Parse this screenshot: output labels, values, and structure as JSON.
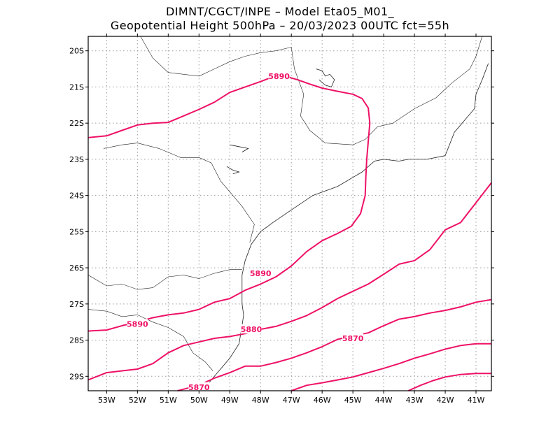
{
  "header": {
    "line1": "DIMNT/CGCT/INPE –  Model Eta05_M01_",
    "line2": "Geopotential Height 500hPa –  20/03/2023 00UTC fct=55h"
  },
  "colors": {
    "contour": "#ee1166",
    "grid": "#999999",
    "coast": "#222222",
    "frame": "#000000"
  },
  "map_data": {
    "type": "contour",
    "variable": "Geopotential Height 500hPa",
    "lon_range": [
      -53.6,
      -40.5
    ],
    "lat_range": [
      -29.4,
      -19.6
    ],
    "x_ticks": [
      {
        "value": -53,
        "label": "53W"
      },
      {
        "value": -52,
        "label": "52W"
      },
      {
        "value": -51,
        "label": "51W"
      },
      {
        "value": -50,
        "label": "50W"
      },
      {
        "value": -49,
        "label": "49W"
      },
      {
        "value": -48,
        "label": "48W"
      },
      {
        "value": -47,
        "label": "47W"
      },
      {
        "value": -46,
        "label": "46W"
      },
      {
        "value": -45,
        "label": "45W"
      },
      {
        "value": -44,
        "label": "44W"
      },
      {
        "value": -43,
        "label": "43W"
      },
      {
        "value": -42,
        "label": "42W"
      },
      {
        "value": -41,
        "label": "41W"
      }
    ],
    "y_ticks": [
      {
        "value": -20,
        "label": "20S"
      },
      {
        "value": -21,
        "label": "21S"
      },
      {
        "value": -22,
        "label": "22S"
      },
      {
        "value": -23,
        "label": "23S"
      },
      {
        "value": -24,
        "label": "24S"
      },
      {
        "value": -25,
        "label": "25S"
      },
      {
        "value": -26,
        "label": "26S"
      },
      {
        "value": -27,
        "label": "27S"
      },
      {
        "value": -28,
        "label": "28S"
      },
      {
        "value": -29,
        "label": "29S"
      }
    ],
    "contours": [
      {
        "id": "north-5890",
        "points": [
          [
            -53.6,
            -22.4
          ],
          [
            -53.0,
            -22.35
          ],
          [
            -52.5,
            -22.2
          ],
          [
            -52.0,
            -22.05
          ],
          [
            -51.5,
            -22.0
          ],
          [
            -51.0,
            -21.98
          ],
          [
            -50.5,
            -21.8
          ],
          [
            -50.0,
            -21.62
          ],
          [
            -49.5,
            -21.42
          ],
          [
            -49.0,
            -21.15
          ],
          [
            -48.5,
            -21.0
          ],
          [
            -48.0,
            -20.85
          ],
          [
            -47.6,
            -20.72
          ],
          [
            -47.2,
            -20.7
          ],
          [
            -46.8,
            -20.8
          ],
          [
            -46.4,
            -20.92
          ],
          [
            -46.0,
            -21.03
          ],
          [
            -45.5,
            -21.12
          ],
          [
            -45.0,
            -21.2
          ],
          [
            -44.7,
            -21.32
          ],
          [
            -44.5,
            -21.58
          ],
          [
            -44.45,
            -22.0
          ],
          [
            -44.5,
            -22.5
          ],
          [
            -44.55,
            -23.0
          ],
          [
            -44.58,
            -23.5
          ],
          [
            -44.6,
            -24.0
          ],
          [
            -44.75,
            -24.5
          ],
          [
            -45.05,
            -24.85
          ],
          [
            -45.5,
            -25.05
          ],
          [
            -46.0,
            -25.25
          ],
          [
            -46.5,
            -25.55
          ],
          [
            -47.0,
            -25.95
          ],
          [
            -47.5,
            -26.25
          ],
          [
            -48.0,
            -26.45
          ],
          [
            -48.5,
            -26.62
          ],
          [
            -49.0,
            -26.85
          ],
          [
            -49.5,
            -26.95
          ],
          [
            -50.0,
            -27.15
          ],
          [
            -50.5,
            -27.25
          ],
          [
            -51.0,
            -27.3
          ],
          [
            -51.5,
            -27.38
          ],
          [
            -52.0,
            -27.5
          ],
          [
            -52.5,
            -27.6
          ],
          [
            -53.0,
            -27.72
          ],
          [
            -53.6,
            -27.75
          ]
        ]
      },
      {
        "id": "mid-5880",
        "points": [
          [
            -53.6,
            -29.1
          ],
          [
            -53.0,
            -28.9
          ],
          [
            -52.5,
            -28.85
          ],
          [
            -52.0,
            -28.8
          ],
          [
            -51.5,
            -28.65
          ],
          [
            -51.0,
            -28.35
          ],
          [
            -50.5,
            -28.15
          ],
          [
            -50.0,
            -28.05
          ],
          [
            -49.5,
            -27.95
          ],
          [
            -49.0,
            -27.9
          ],
          [
            -48.5,
            -27.82
          ],
          [
            -48.0,
            -27.7
          ],
          [
            -47.5,
            -27.62
          ],
          [
            -47.0,
            -27.48
          ],
          [
            -46.5,
            -27.32
          ],
          [
            -46.0,
            -27.1
          ],
          [
            -45.5,
            -26.85
          ],
          [
            -45.0,
            -26.65
          ],
          [
            -44.5,
            -26.45
          ],
          [
            -44.0,
            -26.18
          ],
          [
            -43.5,
            -25.9
          ],
          [
            -43.0,
            -25.8
          ],
          [
            -42.5,
            -25.5
          ],
          [
            -42.0,
            -24.95
          ],
          [
            -41.5,
            -24.75
          ],
          [
            -41.0,
            -24.2
          ],
          [
            -40.5,
            -23.65
          ]
        ]
      },
      {
        "id": "low-5870",
        "points": [
          [
            -50.7,
            -29.4
          ],
          [
            -50.0,
            -29.25
          ],
          [
            -49.5,
            -29.05
          ],
          [
            -49.0,
            -28.9
          ],
          [
            -48.5,
            -28.72
          ],
          [
            -48.0,
            -28.72
          ],
          [
            -47.5,
            -28.62
          ],
          [
            -47.0,
            -28.5
          ],
          [
            -46.5,
            -28.35
          ],
          [
            -46.0,
            -28.18
          ],
          [
            -45.5,
            -27.98
          ],
          [
            -45.0,
            -27.88
          ],
          [
            -44.5,
            -27.8
          ],
          [
            -44.0,
            -27.6
          ],
          [
            -43.5,
            -27.42
          ],
          [
            -43.0,
            -27.35
          ],
          [
            -42.5,
            -27.25
          ],
          [
            -42.0,
            -27.18
          ],
          [
            -41.5,
            -27.08
          ],
          [
            -41.0,
            -26.95
          ],
          [
            -40.5,
            -26.88
          ]
        ]
      },
      {
        "id": "s1",
        "points": [
          [
            -47.0,
            -29.4
          ],
          [
            -46.5,
            -29.25
          ],
          [
            -46.0,
            -29.18
          ],
          [
            -45.5,
            -29.1
          ],
          [
            -45.0,
            -29.02
          ],
          [
            -44.5,
            -28.9
          ],
          [
            -44.0,
            -28.78
          ],
          [
            -43.5,
            -28.65
          ],
          [
            -43.0,
            -28.5
          ],
          [
            -42.5,
            -28.38
          ],
          [
            -42.0,
            -28.25
          ],
          [
            -41.5,
            -28.15
          ],
          [
            -41.0,
            -28.1
          ],
          [
            -40.5,
            -28.1
          ]
        ]
      },
      {
        "id": "s2",
        "points": [
          [
            -43.2,
            -29.4
          ],
          [
            -42.8,
            -29.25
          ],
          [
            -42.4,
            -29.12
          ],
          [
            -42.0,
            -29.02
          ],
          [
            -41.5,
            -28.95
          ],
          [
            -41.0,
            -28.92
          ],
          [
            -40.5,
            -28.92
          ]
        ]
      }
    ],
    "contour_labels": [
      {
        "text": "5890",
        "lon": -47.4,
        "lat": -20.7
      },
      {
        "text": "5890",
        "lon": -48.0,
        "lat": -26.15
      },
      {
        "text": "5890",
        "lon": -52.0,
        "lat": -27.55
      },
      {
        "text": "5880",
        "lon": -48.3,
        "lat": -27.7
      },
      {
        "text": "5870",
        "lon": -45.0,
        "lat": -27.95
      },
      {
        "text": "5870",
        "lon": -50.0,
        "lat": -29.3
      }
    ],
    "coastlines": [
      {
        "id": "coast",
        "points": [
          [
            -40.6,
            -20.35
          ],
          [
            -40.8,
            -20.8
          ],
          [
            -41.0,
            -21.2
          ],
          [
            -41.05,
            -21.6
          ],
          [
            -41.7,
            -22.25
          ],
          [
            -42.0,
            -22.9
          ],
          [
            -42.6,
            -23.0
          ],
          [
            -43.2,
            -23.0
          ],
          [
            -43.5,
            -23.05
          ],
          [
            -44.0,
            -23.0
          ],
          [
            -44.3,
            -23.05
          ],
          [
            -44.7,
            -23.35
          ],
          [
            -45.0,
            -23.5
          ],
          [
            -45.5,
            -23.75
          ],
          [
            -46.3,
            -24.0
          ],
          [
            -47.0,
            -24.4
          ],
          [
            -47.6,
            -24.75
          ],
          [
            -48.0,
            -25.0
          ],
          [
            -48.3,
            -25.35
          ],
          [
            -48.5,
            -25.8
          ],
          [
            -48.6,
            -26.2
          ],
          [
            -48.6,
            -26.6
          ],
          [
            -48.6,
            -27.0
          ],
          [
            -48.55,
            -27.3
          ],
          [
            -48.6,
            -27.6
          ],
          [
            -48.7,
            -28.1
          ],
          [
            -49.0,
            -28.5
          ],
          [
            -49.5,
            -29.0
          ],
          [
            -49.9,
            -29.4
          ]
        ]
      }
    ],
    "borders": [
      {
        "id": "br1",
        "points": [
          [
            -51.9,
            -19.6
          ],
          [
            -51.5,
            -20.2
          ],
          [
            -51.0,
            -20.6
          ],
          [
            -50.5,
            -20.65
          ],
          [
            -50.0,
            -20.7
          ],
          [
            -49.5,
            -20.5
          ],
          [
            -49.0,
            -20.3
          ],
          [
            -48.5,
            -20.15
          ],
          [
            -48.0,
            -20.05
          ],
          [
            -47.5,
            -20.0
          ],
          [
            -47.0,
            -19.9
          ]
        ]
      },
      {
        "id": "br2",
        "points": [
          [
            -47.0,
            -19.9
          ],
          [
            -46.9,
            -20.5
          ],
          [
            -46.6,
            -21.2
          ],
          [
            -46.7,
            -21.8
          ],
          [
            -46.4,
            -22.2
          ],
          [
            -45.9,
            -22.55
          ],
          [
            -45.0,
            -22.6
          ],
          [
            -44.6,
            -22.45
          ],
          [
            -44.2,
            -22.1
          ],
          [
            -43.7,
            -22.0
          ],
          [
            -43.0,
            -21.6
          ],
          [
            -42.3,
            -21.3
          ],
          [
            -41.8,
            -20.9
          ],
          [
            -41.2,
            -20.5
          ],
          [
            -41.0,
            -20.15
          ],
          [
            -40.8,
            -19.6
          ]
        ]
      },
      {
        "id": "br3",
        "points": [
          [
            -53.1,
            -22.7
          ],
          [
            -52.5,
            -22.6
          ],
          [
            -52.0,
            -22.55
          ],
          [
            -51.3,
            -22.7
          ],
          [
            -50.6,
            -22.95
          ],
          [
            -50.0,
            -22.95
          ],
          [
            -49.6,
            -23.1
          ],
          [
            -49.3,
            -23.6
          ],
          [
            -48.6,
            -24.3
          ],
          [
            -48.2,
            -24.8
          ],
          [
            -48.35,
            -25.3
          ]
        ]
      },
      {
        "id": "br4",
        "points": [
          [
            -53.6,
            -26.2
          ],
          [
            -53.0,
            -26.5
          ],
          [
            -52.5,
            -26.45
          ],
          [
            -52.0,
            -26.6
          ],
          [
            -51.5,
            -26.55
          ],
          [
            -51.0,
            -26.25
          ],
          [
            -50.5,
            -26.2
          ],
          [
            -50.0,
            -26.3
          ],
          [
            -49.5,
            -26.15
          ],
          [
            -49.0,
            -26.05
          ],
          [
            -48.6,
            -26.05
          ]
        ]
      },
      {
        "id": "br5",
        "points": [
          [
            -53.6,
            -27.15
          ],
          [
            -53.0,
            -27.2
          ],
          [
            -52.5,
            -27.35
          ],
          [
            -52.0,
            -27.3
          ],
          [
            -51.5,
            -27.5
          ],
          [
            -51.0,
            -27.65
          ],
          [
            -50.5,
            -27.9
          ],
          [
            -50.2,
            -28.35
          ],
          [
            -49.8,
            -28.6
          ],
          [
            -49.55,
            -28.85
          ]
        ]
      }
    ]
  }
}
